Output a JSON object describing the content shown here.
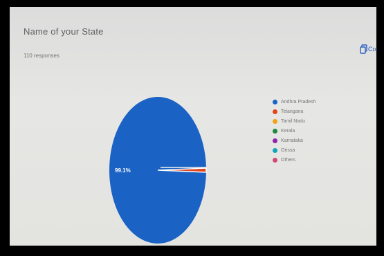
{
  "form": {
    "question_title": "Name of your State",
    "responses": "110 responses",
    "copy_label": "Co"
  },
  "chart_data": {
    "type": "pie",
    "title": "Name of your State",
    "categories": [
      "Andhra Pradesh",
      "Telangana",
      "Tamil Nadu",
      "Kerala",
      "Karnataka",
      "Orissa",
      "Others"
    ],
    "values": [
      99.1,
      0.9,
      0,
      0,
      0,
      0,
      0
    ],
    "unit": "%",
    "data_labels": [
      "99.1%"
    ],
    "colors": [
      "#1a63c4",
      "#e0461f",
      "#f0a21a",
      "#1e8a3c",
      "#8e24aa",
      "#12a4b8",
      "#d0497a"
    ],
    "legend_position": "right"
  }
}
